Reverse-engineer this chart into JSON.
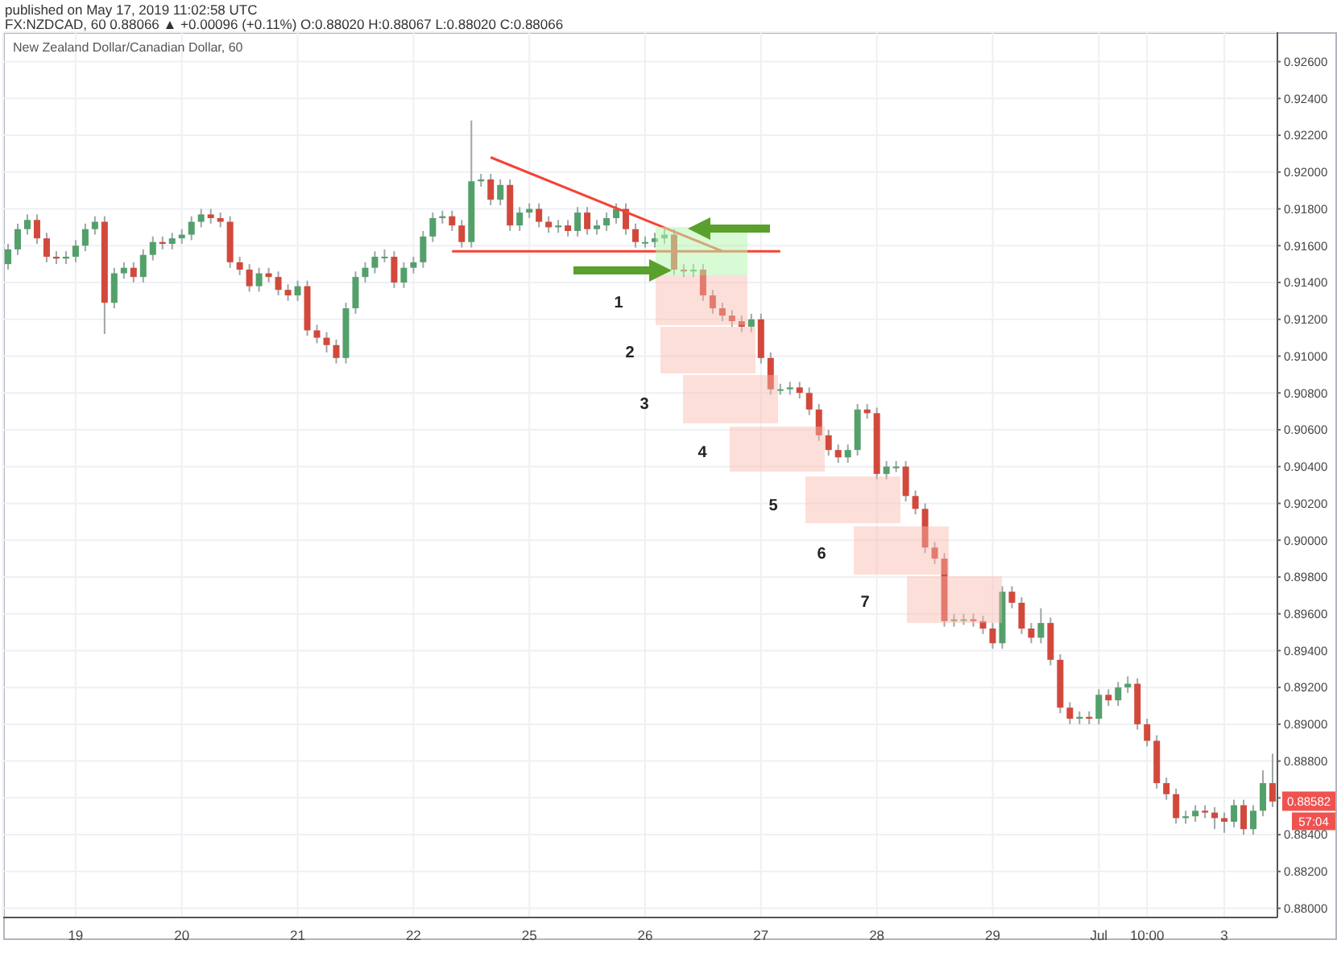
{
  "chart_data": {
    "type": "candlestick",
    "title": "New Zealand Dollar/Canadian Dollar, 60",
    "subtitle": "FX:NZDCAD, 60 0.88066 ▲ +0.00096 (+0.11%) O:0.88020 H:0.88067 L:0.88020 C:0.88066",
    "annotations": [
      "published on May 17, 2019 11:02:58 UTC",
      "1",
      "2",
      "3",
      "4",
      "5",
      "6",
      "7",
      "57:04",
      {
        "text": "0.88582",
        "y": 0.88582
      }
    ],
    "categories": [
      null,
      null,
      null,
      null,
      null,
      null,
      null,
      "19",
      null,
      null,
      null,
      null,
      null,
      null,
      null,
      null,
      null,
      null,
      "20",
      null,
      null,
      null,
      null,
      null,
      null,
      null,
      null,
      null,
      null,
      null,
      "21",
      null,
      null,
      null,
      null,
      null,
      null,
      null,
      null,
      null,
      null,
      null,
      "22",
      null,
      null,
      null,
      null,
      null,
      null,
      null,
      null,
      null,
      null,
      null,
      "25",
      null,
      null,
      null,
      null,
      null,
      null,
      null,
      null,
      null,
      null,
      null,
      "26",
      null,
      null,
      null,
      null,
      null,
      null,
      null,
      null,
      null,
      null,
      null,
      "27",
      null,
      null,
      null,
      null,
      null,
      null,
      null,
      null,
      null,
      null,
      null,
      "28",
      null,
      null,
      null,
      null,
      null,
      null,
      null,
      null,
      null,
      null,
      null,
      "29",
      null,
      null,
      null,
      null,
      null,
      null,
      null,
      null,
      null,
      null,
      "Jul",
      null,
      null,
      null,
      null,
      "10:00",
      null,
      null,
      null,
      null,
      null,
      null,
      null,
      "3",
      null,
      null,
      null,
      null,
      null
    ],
    "ohlc": [
      [
        0.915,
        0.9161,
        0.9147,
        0.9158
      ],
      [
        0.9158,
        0.9172,
        0.9155,
        0.9169
      ],
      [
        0.9169,
        0.9177,
        0.9166,
        0.9174
      ],
      [
        0.9174,
        0.9177,
        0.9161,
        0.9164
      ],
      [
        0.9164,
        0.9167,
        0.9151,
        0.9154
      ],
      [
        0.9154,
        0.9157,
        0.915,
        0.9153
      ],
      [
        0.9153,
        0.9157,
        0.915,
        0.9154
      ],
      [
        0.9154,
        0.9163,
        0.9151,
        0.916
      ],
      [
        0.916,
        0.9172,
        0.9157,
        0.9169
      ],
      [
        0.9169,
        0.9176,
        0.9166,
        0.9173
      ],
      [
        0.9173,
        0.9176,
        0.9112,
        0.9129
      ],
      [
        0.9129,
        0.9148,
        0.9126,
        0.9145
      ],
      [
        0.9145,
        0.9151,
        0.9142,
        0.9148
      ],
      [
        0.9148,
        0.9151,
        0.914,
        0.9143
      ],
      [
        0.9143,
        0.9158,
        0.914,
        0.9155
      ],
      [
        0.9155,
        0.9165,
        0.9152,
        0.9162
      ],
      [
        0.9162,
        0.9165,
        0.9158,
        0.9161
      ],
      [
        0.9161,
        0.9167,
        0.9158,
        0.9164
      ],
      [
        0.9164,
        0.9169,
        0.9161,
        0.9166
      ],
      [
        0.9166,
        0.9176,
        0.9163,
        0.9173
      ],
      [
        0.9173,
        0.918,
        0.917,
        0.9177
      ],
      [
        0.9177,
        0.918,
        0.9172,
        0.9175
      ],
      [
        0.9175,
        0.9178,
        0.917,
        0.9173
      ],
      [
        0.9173,
        0.9176,
        0.9148,
        0.9151
      ],
      [
        0.9151,
        0.9154,
        0.9144,
        0.9147
      ],
      [
        0.9147,
        0.915,
        0.9135,
        0.9138
      ],
      [
        0.9138,
        0.9148,
        0.9135,
        0.9145
      ],
      [
        0.9145,
        0.9148,
        0.914,
        0.9143
      ],
      [
        0.9143,
        0.9146,
        0.9133,
        0.9136
      ],
      [
        0.9136,
        0.9139,
        0.913,
        0.9133
      ],
      [
        0.9133,
        0.9141,
        0.913,
        0.9138
      ],
      [
        0.9138,
        0.9141,
        0.9111,
        0.9114
      ],
      [
        0.9114,
        0.9117,
        0.9107,
        0.911
      ],
      [
        0.911,
        0.9113,
        0.9102,
        0.9106
      ],
      [
        0.9106,
        0.9109,
        0.9096,
        0.9099
      ],
      [
        0.9099,
        0.9129,
        0.9096,
        0.9126
      ],
      [
        0.9126,
        0.9146,
        0.9123,
        0.9143
      ],
      [
        0.9143,
        0.9151,
        0.914,
        0.9148
      ],
      [
        0.9148,
        0.9157,
        0.9145,
        0.9154
      ],
      [
        0.9154,
        0.9158,
        0.9151,
        0.9154
      ],
      [
        0.9154,
        0.9157,
        0.9137,
        0.914
      ],
      [
        0.914,
        0.9151,
        0.9137,
        0.9148
      ],
      [
        0.9148,
        0.9154,
        0.9145,
        0.9151
      ],
      [
        0.9151,
        0.9168,
        0.9148,
        0.9165
      ],
      [
        0.9165,
        0.9178,
        0.9162,
        0.9175
      ],
      [
        0.9175,
        0.9179,
        0.9172,
        0.9176
      ],
      [
        0.9176,
        0.9179,
        0.9168,
        0.9171
      ],
      [
        0.9171,
        0.9174,
        0.9159,
        0.9162
      ],
      [
        0.9162,
        0.9228,
        0.9159,
        0.9195
      ],
      [
        0.9195,
        0.9199,
        0.9192,
        0.9196
      ],
      [
        0.9196,
        0.9199,
        0.9182,
        0.9185
      ],
      [
        0.9185,
        0.9196,
        0.9182,
        0.9193
      ],
      [
        0.9193,
        0.9196,
        0.9168,
        0.9171
      ],
      [
        0.9171,
        0.9181,
        0.9168,
        0.9178
      ],
      [
        0.9178,
        0.9183,
        0.9175,
        0.918
      ],
      [
        0.918,
        0.9183,
        0.917,
        0.9173
      ],
      [
        0.9173,
        0.9176,
        0.9167,
        0.917
      ],
      [
        0.917,
        0.9174,
        0.9167,
        0.9171
      ],
      [
        0.9171,
        0.9174,
        0.9165,
        0.9168
      ],
      [
        0.9168,
        0.9181,
        0.9165,
        0.9178
      ],
      [
        0.9178,
        0.9181,
        0.9166,
        0.9169
      ],
      [
        0.9169,
        0.9174,
        0.9166,
        0.9171
      ],
      [
        0.9171,
        0.9178,
        0.9168,
        0.9175
      ],
      [
        0.9175,
        0.9183,
        0.9172,
        0.918
      ],
      [
        0.918,
        0.9183,
        0.9166,
        0.9169
      ],
      [
        0.9169,
        0.9172,
        0.9159,
        0.9162
      ],
      [
        0.9162,
        0.9165,
        0.9159,
        0.9162
      ],
      [
        0.9162,
        0.9167,
        0.9159,
        0.9164
      ],
      [
        0.9164,
        0.9169,
        0.9161,
        0.9166
      ],
      [
        0.9166,
        0.9169,
        0.9144,
        0.9147
      ],
      [
        0.9147,
        0.915,
        0.9143,
        0.9146
      ],
      [
        0.9146,
        0.915,
        0.9143,
        0.9147
      ],
      [
        0.9147,
        0.915,
        0.913,
        0.9133
      ],
      [
        0.9133,
        0.9136,
        0.9123,
        0.9126
      ],
      [
        0.9126,
        0.9129,
        0.9119,
        0.9122
      ],
      [
        0.9122,
        0.9125,
        0.9116,
        0.9119
      ],
      [
        0.9119,
        0.9122,
        0.9113,
        0.9116
      ],
      [
        0.9116,
        0.9123,
        0.9113,
        0.912
      ],
      [
        0.912,
        0.9123,
        0.9096,
        0.9099
      ],
      [
        0.9099,
        0.9102,
        0.9079,
        0.9082
      ],
      [
        0.9082,
        0.9085,
        0.9079,
        0.9082
      ],
      [
        0.9082,
        0.9086,
        0.9079,
        0.9083
      ],
      [
        0.9083,
        0.9086,
        0.9077,
        0.908
      ],
      [
        0.908,
        0.9083,
        0.9068,
        0.9071
      ],
      [
        0.9071,
        0.9074,
        0.9054,
        0.9057
      ],
      [
        0.9057,
        0.906,
        0.9046,
        0.9049
      ],
      [
        0.9049,
        0.9052,
        0.9042,
        0.9045
      ],
      [
        0.9045,
        0.9052,
        0.9042,
        0.9049
      ],
      [
        0.9049,
        0.9074,
        0.9046,
        0.9071
      ],
      [
        0.9071,
        0.9074,
        0.9066,
        0.9069
      ],
      [
        0.9069,
        0.9072,
        0.9033,
        0.9036
      ],
      [
        0.9036,
        0.9043,
        0.9033,
        0.904
      ],
      [
        0.904,
        0.9043,
        0.9037,
        0.904
      ],
      [
        0.904,
        0.9043,
        0.9021,
        0.9024
      ],
      [
        0.9024,
        0.9027,
        0.9014,
        0.9017
      ],
      [
        0.9017,
        0.902,
        0.8993,
        0.8996
      ],
      [
        0.8996,
        0.8999,
        0.8987,
        0.899
      ],
      [
        0.899,
        0.8993,
        0.8953,
        0.8956
      ],
      [
        0.8956,
        0.896,
        0.8953,
        0.8957
      ],
      [
        0.8957,
        0.896,
        0.8954,
        0.8957
      ],
      [
        0.8957,
        0.896,
        0.8953,
        0.8956
      ],
      [
        0.8956,
        0.8959,
        0.8949,
        0.8952
      ],
      [
        0.8952,
        0.8955,
        0.8941,
        0.8944
      ],
      [
        0.8944,
        0.8975,
        0.8941,
        0.8972
      ],
      [
        0.8972,
        0.8975,
        0.8963,
        0.8966
      ],
      [
        0.8966,
        0.8969,
        0.8949,
        0.8952
      ],
      [
        0.8952,
        0.8955,
        0.8944,
        0.8947
      ],
      [
        0.8947,
        0.8963,
        0.8944,
        0.8955
      ],
      [
        0.8955,
        0.8958,
        0.8932,
        0.8935
      ],
      [
        0.8935,
        0.8938,
        0.8906,
        0.8909
      ],
      [
        0.8909,
        0.8912,
        0.89,
        0.8903
      ],
      [
        0.8903,
        0.8907,
        0.89,
        0.8904
      ],
      [
        0.8904,
        0.8907,
        0.89,
        0.8903
      ],
      [
        0.8903,
        0.8919,
        0.89,
        0.8916
      ],
      [
        0.8916,
        0.8919,
        0.891,
        0.8913
      ],
      [
        0.8913,
        0.8923,
        0.891,
        0.892
      ],
      [
        0.892,
        0.8926,
        0.8917,
        0.8922
      ],
      [
        0.8922,
        0.8925,
        0.8897,
        0.89
      ],
      [
        0.89,
        0.8903,
        0.8888,
        0.8891
      ],
      [
        0.8891,
        0.8894,
        0.8865,
        0.8868
      ],
      [
        0.8868,
        0.8871,
        0.8859,
        0.8862
      ],
      [
        0.8862,
        0.8865,
        0.8846,
        0.8849
      ],
      [
        0.8849,
        0.8853,
        0.8846,
        0.885
      ],
      [
        0.885,
        0.8856,
        0.8847,
        0.8853
      ],
      [
        0.8853,
        0.8856,
        0.8849,
        0.8852
      ],
      [
        0.8852,
        0.8855,
        0.8843,
        0.8849
      ],
      [
        0.8849,
        0.8852,
        0.8841,
        0.8847
      ],
      [
        0.8847,
        0.8859,
        0.8844,
        0.8856
      ],
      [
        0.8856,
        0.8859,
        0.884,
        0.8843
      ],
      [
        0.8843,
        0.8856,
        0.884,
        0.8853
      ],
      [
        0.8853,
        0.8875,
        0.885,
        0.8868
      ],
      [
        0.8868,
        0.8884,
        0.8855,
        0.8858
      ]
    ],
    "series": [
      {
        "type": "line",
        "color": "#f44336",
        "values": [
          null,
          null,
          null,
          null,
          null,
          null,
          null,
          null,
          null,
          null,
          null,
          null,
          null,
          null,
          null,
          null,
          null,
          null,
          null,
          null,
          null,
          null,
          null,
          null,
          null,
          null,
          null,
          null,
          null,
          null,
          null,
          null,
          null,
          null,
          null,
          null,
          null,
          null,
          null,
          null,
          null,
          null,
          null,
          null,
          null,
          null,
          null,
          null,
          null,
          null,
          0.9208,
          null,
          null,
          null,
          null,
          null,
          null,
          null,
          null,
          null,
          null,
          null,
          null,
          null,
          null,
          null,
          null,
          null,
          null,
          null,
          null,
          null,
          null,
          null,
          0.9157,
          null,
          null,
          null,
          null,
          null,
          null,
          null,
          null,
          null,
          null,
          null,
          null,
          null,
          null,
          null,
          null,
          null,
          null,
          null,
          null,
          null,
          null,
          null,
          null,
          null,
          null,
          null,
          null,
          null,
          null,
          null,
          null,
          null,
          null,
          null,
          null,
          null,
          null,
          null,
          null,
          null,
          null,
          null,
          null,
          null,
          null,
          null,
          null,
          null,
          null,
          null,
          null,
          null,
          null,
          null,
          null,
          null
        ]
      },
      {
        "type": "line",
        "color": "#f44336",
        "values": [
          null,
          null,
          null,
          null,
          null,
          null,
          null,
          null,
          null,
          null,
          null,
          null,
          null,
          null,
          null,
          null,
          null,
          null,
          null,
          null,
          null,
          null,
          null,
          null,
          null,
          null,
          null,
          null,
          null,
          null,
          null,
          null,
          null,
          null,
          null,
          null,
          null,
          null,
          null,
          null,
          null,
          null,
          null,
          null,
          null,
          null,
          0.9157,
          null,
          null,
          null,
          null,
          null,
          null,
          null,
          null,
          null,
          null,
          null,
          null,
          null,
          null,
          null,
          null,
          null,
          null,
          null,
          null,
          null,
          null,
          null,
          null,
          null,
          null,
          null,
          null,
          null,
          null,
          null,
          null,
          null,
          0.9157,
          null,
          null,
          null,
          null,
          null,
          null,
          null,
          null,
          null,
          null,
          null,
          null,
          null,
          null,
          null,
          null,
          null,
          null,
          null,
          null,
          null,
          null,
          null,
          null,
          null,
          null,
          null,
          null,
          null,
          null,
          null,
          null,
          null,
          null,
          null,
          null,
          null,
          null,
          null,
          null,
          null,
          null,
          null,
          null,
          null,
          null,
          null,
          null,
          null,
          null,
          null
        ]
      }
    ],
    "ylim": [
      0.8795,
      0.9276
    ],
    "yticks": [
      {
        "value": 0.88,
        "label": "0.88000"
      },
      {
        "value": 0.882,
        "label": "0.88200"
      },
      {
        "value": 0.884,
        "label": "0.88400"
      },
      {
        "value": 0.886,
        "label": null
      },
      {
        "value": 0.888,
        "label": "0.88800"
      },
      {
        "value": 0.89,
        "label": "0.89000"
      },
      {
        "value": 0.892,
        "label": "0.89200"
      },
      {
        "value": 0.894,
        "label": "0.89400"
      },
      {
        "value": 0.896,
        "label": "0.89600"
      },
      {
        "value": 0.898,
        "label": "0.89800"
      },
      {
        "value": 0.9,
        "label": "0.90000"
      },
      {
        "value": 0.902,
        "label": "0.90200"
      },
      {
        "value": 0.904,
        "label": "0.90400"
      },
      {
        "value": 0.906,
        "label": "0.90600"
      },
      {
        "value": 0.908,
        "label": "0.90800"
      },
      {
        "value": 0.91,
        "label": "0.91000"
      },
      {
        "value": 0.912,
        "label": "0.91200"
      },
      {
        "value": 0.914,
        "label": "0.91400"
      },
      {
        "value": 0.916,
        "label": "0.91600"
      },
      {
        "value": 0.918,
        "label": "0.91800"
      },
      {
        "value": 0.92,
        "label": "0.92000"
      },
      {
        "value": 0.922,
        "label": "0.92200"
      },
      {
        "value": 0.924,
        "label": "0.92400"
      },
      {
        "value": 0.926,
        "label": "0.92600"
      }
    ],
    "grid": true
  }
}
